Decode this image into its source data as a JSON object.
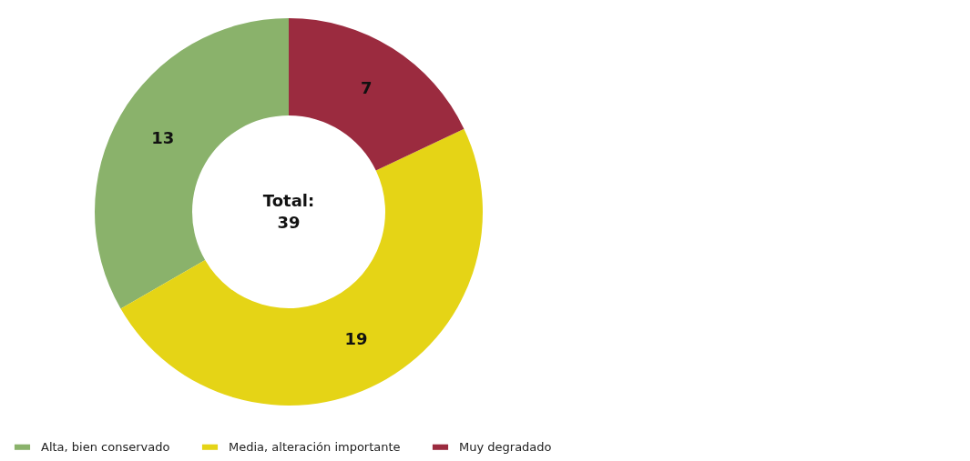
{
  "chart_data": {
    "type": "donut",
    "categories": [
      "Alta, bien conservado",
      "Media, alteración importante",
      "Muy degradado"
    ],
    "values": [
      13,
      19,
      7
    ],
    "colors": [
      "#8ab26b",
      "#e5d416",
      "#9b2b3f"
    ],
    "data_labels": true,
    "legend": "bottom",
    "annotations": [
      "Total:\n39"
    ]
  }
}
